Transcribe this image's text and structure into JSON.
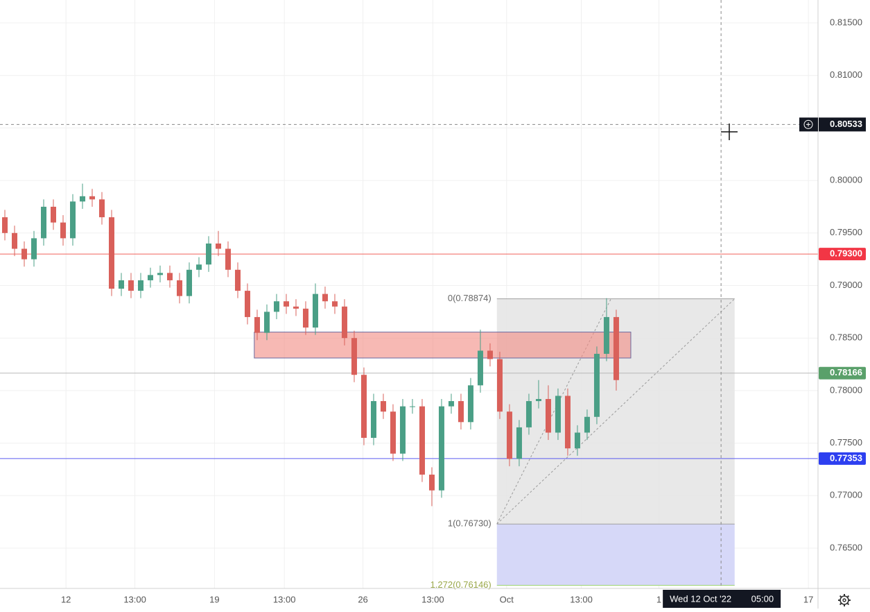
{
  "chart_data": {
    "type": "candlestick",
    "up_color": "#4a9f86",
    "down_color": "#d9605a",
    "xlim": [
      -0.5,
      83.79
    ],
    "ylim": [
      0.76117,
      0.81718
    ],
    "grid": true,
    "xticks": [
      {
        "value": 6.3,
        "label": "12"
      },
      {
        "value": 13.4,
        "label": "13:00"
      },
      {
        "value": 21.6,
        "label": "19"
      },
      {
        "value": 28.8,
        "label": "13:00"
      },
      {
        "value": 36.9,
        "label": "26"
      },
      {
        "value": 44.1,
        "label": "13:00"
      },
      {
        "value": 51.7,
        "label": "Oct"
      },
      {
        "value": 59.4,
        "label": "13:00"
      },
      {
        "value": 67.4,
        "label": "1"
      },
      {
        "value": 82.8,
        "label": "17"
      }
    ],
    "yticks": [
      {
        "value": 0.765,
        "label": "0.76500"
      },
      {
        "value": 0.77,
        "label": "0.77000"
      },
      {
        "value": 0.775,
        "label": "0.77500"
      },
      {
        "value": 0.78,
        "label": "0.78000"
      },
      {
        "value": 0.785,
        "label": "0.78500"
      },
      {
        "value": 0.79,
        "label": "0.79000"
      },
      {
        "value": 0.795,
        "label": "0.79500"
      },
      {
        "value": 0.8,
        "label": "0.80000"
      },
      {
        "value": 0.805,
        "label": "0.80500"
      },
      {
        "value": 0.81,
        "label": "0.81000"
      },
      {
        "value": 0.815,
        "label": "0.81500"
      }
    ],
    "open": [
      0.7965,
      0.795,
      0.7935,
      0.7925,
      0.7945,
      0.7975,
      0.796,
      0.7945,
      0.798,
      0.7985,
      0.7982,
      0.7965,
      0.7897,
      0.7905,
      0.7895,
      0.7905,
      0.791,
      0.7912,
      0.7905,
      0.789,
      0.7915,
      0.792,
      0.794,
      0.7935,
      0.7915,
      0.7895,
      0.787,
      0.7855,
      0.7875,
      0.7885,
      0.788,
      0.7878,
      0.786,
      0.7892,
      0.7885,
      0.788,
      0.785,
      0.7815,
      0.7755,
      0.779,
      0.778,
      0.774,
      0.7785,
      0.7785,
      0.772,
      0.7705,
      0.7785,
      0.779,
      0.777,
      0.7805,
      0.7838,
      0.783,
      0.778,
      0.7735,
      0.7765,
      0.779,
      0.7792,
      0.776,
      0.7795,
      0.7745,
      0.776,
      0.7775,
      0.7835,
      0.787
    ],
    "high": [
      0.7972,
      0.7957,
      0.7942,
      0.7952,
      0.7982,
      0.7982,
      0.7967,
      0.7987,
      0.7997,
      0.7992,
      0.7989,
      0.7972,
      0.7912,
      0.7912,
      0.7912,
      0.7917,
      0.7919,
      0.7919,
      0.7912,
      0.7922,
      0.7927,
      0.7947,
      0.7952,
      0.7942,
      0.7922,
      0.7902,
      0.7877,
      0.7882,
      0.7892,
      0.7892,
      0.7887,
      0.7885,
      0.7902,
      0.7899,
      0.7892,
      0.7887,
      0.7857,
      0.7822,
      0.7797,
      0.7797,
      0.7787,
      0.7792,
      0.7792,
      0.7792,
      0.7727,
      0.7792,
      0.7797,
      0.7797,
      0.7812,
      0.7858,
      0.7845,
      0.7837,
      0.7787,
      0.7772,
      0.7797,
      0.781,
      0.7805,
      0.7802,
      0.7802,
      0.7767,
      0.7782,
      0.7842,
      0.7888,
      0.7877
    ],
    "low": [
      0.7943,
      0.7928,
      0.7918,
      0.7918,
      0.7938,
      0.7953,
      0.7938,
      0.7938,
      0.7973,
      0.7975,
      0.7958,
      0.789,
      0.789,
      0.7888,
      0.7888,
      0.7898,
      0.7903,
      0.7898,
      0.7883,
      0.7883,
      0.7908,
      0.7913,
      0.7928,
      0.7908,
      0.7888,
      0.7863,
      0.7848,
      0.7848,
      0.7868,
      0.7873,
      0.7871,
      0.7853,
      0.7853,
      0.7878,
      0.7873,
      0.7843,
      0.7808,
      0.7748,
      0.7748,
      0.7773,
      0.7733,
      0.7733,
      0.7778,
      0.7713,
      0.769,
      0.7698,
      0.7778,
      0.7763,
      0.7763,
      0.7798,
      0.7823,
      0.7773,
      0.7728,
      0.7728,
      0.7758,
      0.7783,
      0.7753,
      0.7753,
      0.7738,
      0.7738,
      0.7753,
      0.7768,
      0.7828,
      0.78
    ],
    "close": [
      0.795,
      0.7935,
      0.7925,
      0.7945,
      0.7975,
      0.796,
      0.7945,
      0.798,
      0.7985,
      0.7982,
      0.7965,
      0.7897,
      0.7905,
      0.7895,
      0.7905,
      0.791,
      0.7912,
      0.7905,
      0.789,
      0.7915,
      0.792,
      0.794,
      0.7935,
      0.7915,
      0.7895,
      0.787,
      0.7855,
      0.7875,
      0.7885,
      0.788,
      0.7878,
      0.786,
      0.7892,
      0.7885,
      0.788,
      0.785,
      0.7815,
      0.7755,
      0.779,
      0.778,
      0.774,
      0.7785,
      0.7785,
      0.772,
      0.7705,
      0.7785,
      0.779,
      0.777,
      0.7805,
      0.7838,
      0.783,
      0.778,
      0.7735,
      0.7765,
      0.779,
      0.7792,
      0.776,
      0.7795,
      0.7745,
      0.776,
      0.7775,
      0.7835,
      0.787,
      0.781
    ],
    "hlines": [
      {
        "value": 0.793,
        "label": "0.79300",
        "color": "#f0605a",
        "label_color": "#f23645"
      },
      {
        "value": 0.78166,
        "label": "0.78166",
        "color": "#b8b8b8",
        "label_color": "#5aa06a"
      },
      {
        "value": 0.77353,
        "label": "0.77353",
        "color": "#5b5bf0",
        "label_color": "#2d3ff0"
      }
    ],
    "zone": {
      "x": [
        25.7,
        64.5
      ],
      "y": [
        0.7831,
        0.78557
      ],
      "color": "#f28b82"
    },
    "fib": {
      "x": [
        50.7,
        75.2
      ],
      "levels": [
        {
          "value": 0.78874,
          "label": "0(0.78874)"
        },
        {
          "value": 0.7673,
          "label": "1(0.76730)"
        },
        {
          "value": 0.76146,
          "label": "1.272(0.76146)"
        }
      ]
    },
    "crosshair": {
      "x": 73.8,
      "y": 0.80533,
      "y_label": "0.80533",
      "x_label": "Wed 12 Oct '22",
      "time_label": "05:00"
    }
  }
}
